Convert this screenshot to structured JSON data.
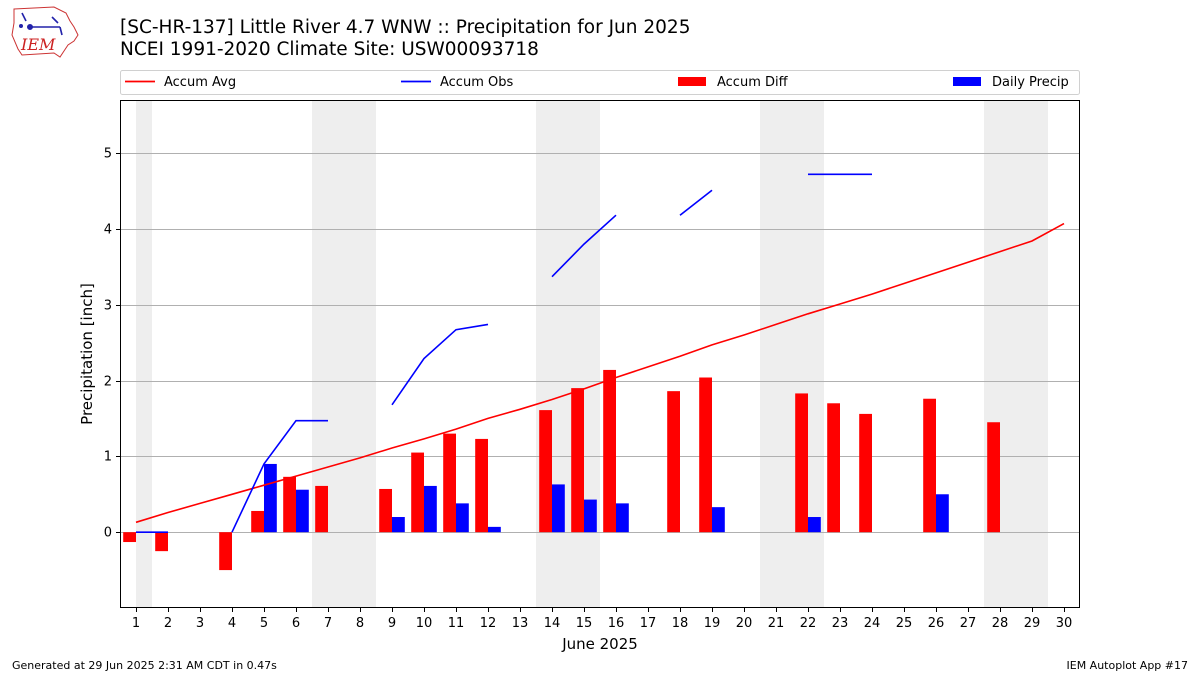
{
  "header": {
    "logo_text": "IEM",
    "title_line1": "[SC-HR-137] Little River 4.7 WNW :: Precipitation for Jun 2025",
    "title_line2": "NCEI 1991-2020 Climate Site: USW00093718"
  },
  "footer": {
    "generated": "Generated at 29 Jun 2025 2:31 AM CDT in 0.47s",
    "app": "IEM Autoplot App #17"
  },
  "chart_data": {
    "type": "bar",
    "xlabel": "June 2025",
    "ylabel": "Precipitation [inch]",
    "x": [
      1,
      2,
      3,
      4,
      5,
      6,
      7,
      8,
      9,
      10,
      11,
      12,
      13,
      14,
      15,
      16,
      17,
      18,
      19,
      20,
      21,
      22,
      23,
      24,
      25,
      26,
      27,
      28,
      29,
      30
    ],
    "xlim": [
      0.5,
      30.5
    ],
    "ylim": [
      -1.0,
      5.7
    ],
    "yticks": [
      0,
      1,
      2,
      3,
      4,
      5
    ],
    "grid": "horizontal",
    "weekend_shading": [
      [
        1,
        1.5
      ],
      [
        6.5,
        8.5
      ],
      [
        13.5,
        15.5
      ],
      [
        20.5,
        22.5
      ],
      [
        27.5,
        29.5
      ]
    ],
    "shade_color": "#eeeeee",
    "legend": {
      "placement": "top, above plot",
      "entries": [
        {
          "label": "Accum Avg",
          "kind": "line",
          "color": "#ff0000"
        },
        {
          "label": "Accum Obs",
          "kind": "line",
          "color": "#0000ff"
        },
        {
          "label": "Accum Diff",
          "kind": "bar",
          "color": "#ff0000"
        },
        {
          "label": "Daily Precip",
          "kind": "bar",
          "color": "#0000ff"
        }
      ]
    },
    "series": [
      {
        "name": "Accum Avg",
        "kind": "line",
        "color": "#ff0000",
        "values": [
          0.13,
          0.26,
          0.38,
          0.5,
          0.62,
          0.74,
          0.86,
          0.98,
          1.11,
          1.23,
          1.36,
          1.5,
          1.62,
          1.75,
          1.89,
          2.04,
          2.18,
          2.32,
          2.47,
          2.6,
          2.74,
          2.88,
          3.01,
          3.14,
          3.28,
          3.42,
          3.56,
          3.7,
          3.84,
          4.07
        ]
      },
      {
        "name": "Accum Obs",
        "kind": "line",
        "color": "#0000ff",
        "values": [
          0.0,
          0.0,
          null,
          0.0,
          0.9,
          1.47,
          1.47,
          null,
          1.68,
          2.29,
          2.67,
          2.74,
          null,
          3.37,
          3.8,
          4.18,
          null,
          4.18,
          4.51,
          null,
          null,
          4.72,
          4.72,
          4.72,
          null,
          null,
          null,
          null,
          null,
          null
        ]
      },
      {
        "name": "Accum Diff",
        "kind": "bar",
        "color": "#ff0000",
        "values": [
          -0.13,
          -0.25,
          null,
          -0.5,
          0.28,
          0.73,
          0.61,
          null,
          0.57,
          1.05,
          1.3,
          1.23,
          null,
          1.61,
          1.9,
          2.14,
          null,
          1.86,
          2.04,
          null,
          null,
          1.83,
          1.7,
          1.56,
          null,
          1.76,
          null,
          1.45,
          null,
          null
        ]
      },
      {
        "name": "Daily Precip",
        "kind": "bar",
        "color": "#0000ff",
        "values": [
          null,
          null,
          null,
          null,
          0.9,
          0.56,
          null,
          null,
          0.2,
          0.61,
          0.38,
          0.07,
          null,
          0.63,
          0.43,
          0.38,
          null,
          null,
          0.33,
          null,
          null,
          0.2,
          null,
          null,
          null,
          0.5,
          null,
          null,
          null,
          null
        ]
      }
    ]
  }
}
